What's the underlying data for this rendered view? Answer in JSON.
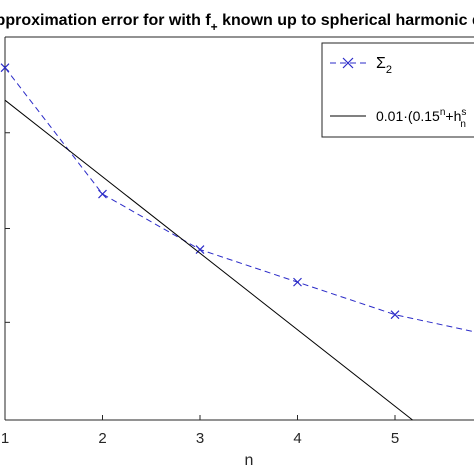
{
  "chart_data": {
    "type": "line",
    "title": "Approximation error for with f",
    "title_subscript": "+",
    "title_suffix": " known up to spherical harmonic degree",
    "xlabel": "n",
    "ylabel": "",
    "x_ticks": [
      "1",
      "2",
      "3",
      "4",
      "5"
    ],
    "xlim": [
      1,
      5.8
    ],
    "ylim": [
      0,
      1
    ],
    "y_scale": "log",
    "grid": false,
    "legend_position": "top-right",
    "series": [
      {
        "name": "Σ",
        "name_subscript": "2",
        "style": "dashed",
        "marker": "x",
        "color": "#2b2bc8",
        "x": [
          1,
          2,
          3,
          4,
          5,
          6
        ],
        "y": [
          0.92,
          0.59,
          0.445,
          0.36,
          0.275,
          0.22
        ]
      },
      {
        "name": "0.01·(0.15",
        "name_parts": [
          "0.01·(0.15",
          "n",
          "+h",
          "s",
          "n"
        ],
        "style": "solid",
        "marker": "none",
        "color": "#000000",
        "x": [
          1,
          5.18
        ],
        "y": [
          0.835,
          0.0
        ]
      }
    ]
  }
}
